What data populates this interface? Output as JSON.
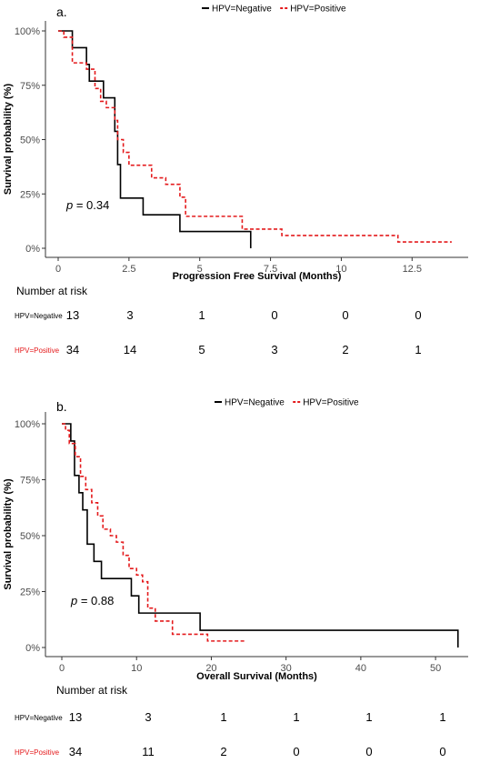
{
  "colors": {
    "negative": "#000000",
    "positive": "#e41a1c",
    "axis": "#333333"
  },
  "chart_data": [
    {
      "type": "line",
      "panel_label": "a.",
      "xlabel": "Progression Free Survival (Months)",
      "ylabel": "Survival probability (%)",
      "xlim": [
        0,
        14
      ],
      "ylim": [
        0,
        1
      ],
      "x_ticks": [
        0,
        2.5,
        5,
        7.5,
        10,
        12.5
      ],
      "x_tick_labels": [
        "0",
        "2.5",
        "5",
        "7.5",
        "10",
        "12.5"
      ],
      "y_ticks": [
        0,
        0.25,
        0.5,
        0.75,
        1
      ],
      "y_tick_labels": [
        "0%",
        "25%",
        "50%",
        "75%",
        "100%"
      ],
      "grid": false,
      "legend_position": "top",
      "pvalue_prefix": "p",
      "pvalue_text": " = 0.34",
      "series": [
        {
          "name": "HPV=Negative",
          "style": "solid",
          "color": "#000000",
          "x": [
            0,
            0.5,
            1,
            1.1,
            1.6,
            2.0,
            2.1,
            2.2,
            2.3,
            3.0,
            4.3,
            6.8
          ],
          "y": [
            1,
            0.923,
            0.846,
            0.769,
            0.692,
            0.538,
            0.385,
            0.231,
            0.231,
            0.154,
            0.077,
            0.0
          ]
        },
        {
          "name": "HPV=Positive",
          "style": "dashed",
          "color": "#e41a1c",
          "x": [
            0,
            0.2,
            0.5,
            1.0,
            1.3,
            1.5,
            1.7,
            2.0,
            2.1,
            2.3,
            2.5,
            3.3,
            3.8,
            4.3,
            4.5,
            6.5,
            7.9,
            12.0,
            13.9
          ],
          "y": [
            1,
            0.971,
            0.853,
            0.824,
            0.735,
            0.676,
            0.647,
            0.588,
            0.5,
            0.441,
            0.382,
            0.324,
            0.294,
            0.235,
            0.147,
            0.088,
            0.059,
            0.029,
            0.029
          ]
        }
      ],
      "risk_table": {
        "title": "Number at risk",
        "time_points": [
          0,
          2.5,
          5,
          7.5,
          10,
          12.5
        ],
        "rows": [
          {
            "label": "HPV=Negative",
            "values": [
              "13",
              "3",
              "1",
              "0",
              "0",
              "0"
            ]
          },
          {
            "label": "HPV=Positive",
            "values": [
              "34",
              "14",
              "5",
              "3",
              "2",
              "1"
            ]
          }
        ]
      }
    },
    {
      "type": "line",
      "panel_label": "b.",
      "xlabel": "Overall Survival (Months)",
      "ylabel": "Survival probability (%)",
      "xlim": [
        0,
        54
      ],
      "ylim": [
        0,
        1
      ],
      "x_ticks": [
        0,
        10,
        20,
        30,
        40,
        50
      ],
      "x_tick_labels": [
        "0",
        "10",
        "20",
        "30",
        "40",
        "50"
      ],
      "y_ticks": [
        0,
        0.25,
        0.5,
        0.75,
        1
      ],
      "y_tick_labels": [
        "0%",
        "25%",
        "50%",
        "75%",
        "100%"
      ],
      "grid": false,
      "legend_position": "top",
      "pvalue_prefix": "p",
      "pvalue_text": " = 0.88",
      "series": [
        {
          "name": "HPV=Negative",
          "style": "solid",
          "color": "#000000",
          "x": [
            0,
            1.2,
            1.7,
            2.3,
            2.8,
            3.4,
            4.3,
            5.3,
            9.3,
            10.3,
            18.5,
            53
          ],
          "y": [
            1,
            0.923,
            0.769,
            0.692,
            0.615,
            0.462,
            0.385,
            0.308,
            0.231,
            0.154,
            0.077,
            0.0
          ]
        },
        {
          "name": "HPV=Positive",
          "style": "dashed",
          "color": "#e41a1c",
          "x": [
            0,
            0.5,
            1.0,
            1.8,
            2.5,
            3.2,
            4.0,
            4.8,
            5.5,
            6.5,
            7.3,
            8.2,
            9.0,
            10.0,
            10.8,
            11.5,
            12.5,
            14.8,
            17.5,
            19.5,
            24.5
          ],
          "y": [
            1,
            0.971,
            0.912,
            0.853,
            0.765,
            0.706,
            0.647,
            0.588,
            0.529,
            0.5,
            0.471,
            0.412,
            0.353,
            0.324,
            0.294,
            0.176,
            0.118,
            0.059,
            0.059,
            0.029,
            0.029
          ]
        }
      ],
      "risk_table": {
        "title": "Number at risk",
        "time_points": [
          0,
          10,
          20,
          30,
          40,
          50
        ],
        "rows": [
          {
            "label": "HPV=Negative",
            "values": [
              "13",
              "3",
              "1",
              "1",
              "1",
              "1"
            ]
          },
          {
            "label": "HPV=Positive",
            "values": [
              "34",
              "11",
              "2",
              "0",
              "0",
              "0"
            ]
          }
        ]
      }
    }
  ]
}
